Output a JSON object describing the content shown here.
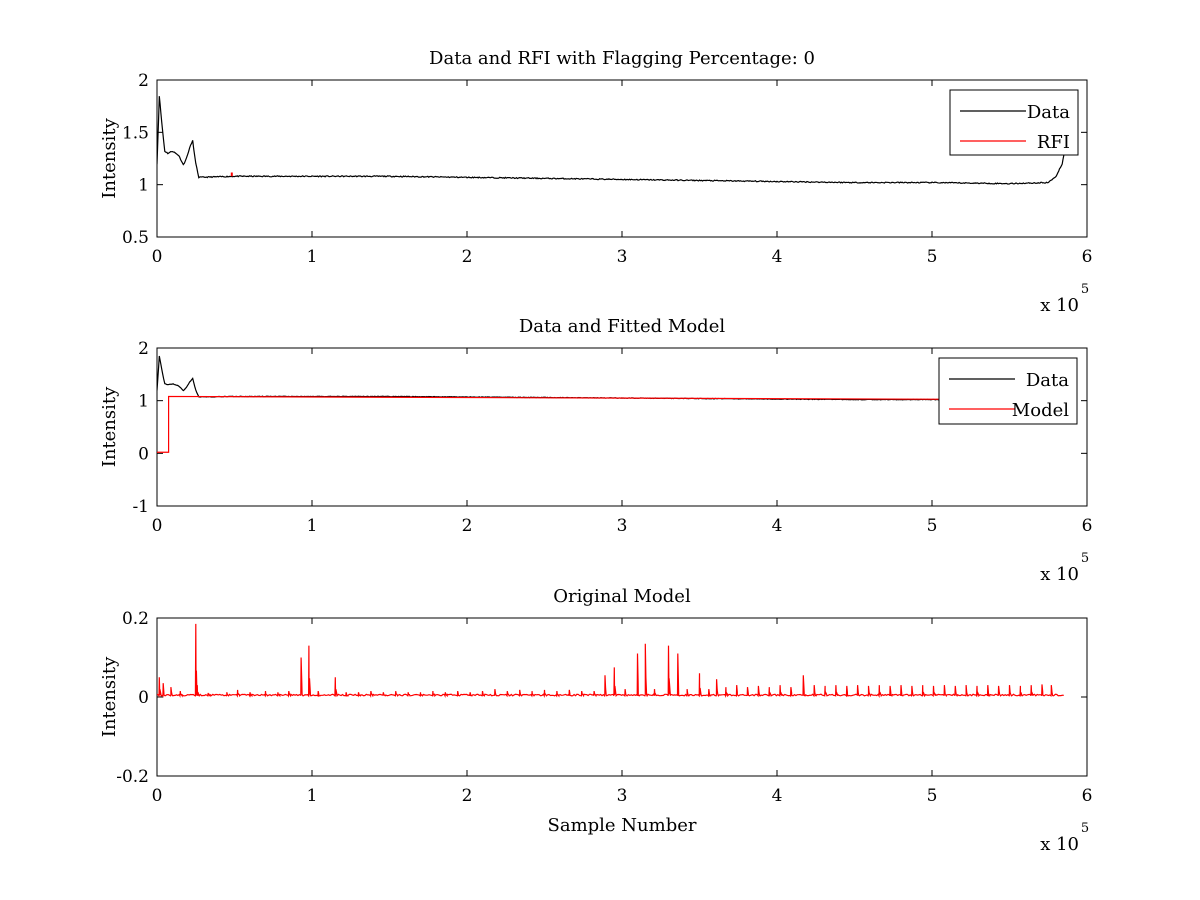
{
  "figure": {
    "background": "#ffffff"
  },
  "chart_data": [
    {
      "type": "line",
      "title": "Data and RFI with Flagging Percentage: 0",
      "xlabel": "",
      "ylabel": "Intensity",
      "xlim": [
        0,
        600000
      ],
      "ylim": [
        0.5,
        2
      ],
      "xticks": [
        0,
        100000,
        200000,
        300000,
        400000,
        500000,
        600000
      ],
      "xtick_labels": [
        "0",
        "1",
        "2",
        "3",
        "4",
        "5",
        "6"
      ],
      "yticks": [
        0.5,
        1,
        1.5,
        2
      ],
      "ytick_labels": [
        "0.5",
        "1",
        "1.5",
        "2"
      ],
      "x_multiplier": {
        "text": "x 10",
        "exponent": "5"
      },
      "grid": false,
      "legend": {
        "position": "top-right"
      },
      "series": [
        {
          "name": "Data",
          "color": "#000000",
          "x": [
            0,
            1500,
            3000,
            5000,
            7000,
            10000,
            14000,
            17000,
            19000,
            21000,
            23000,
            25000,
            27000,
            50000,
            100000,
            150000,
            200000,
            250000,
            300000,
            350000,
            400000,
            450000,
            500000,
            550000,
            575000,
            580000,
            584000,
            585000
          ],
          "y": [
            1.2,
            1.85,
            1.6,
            1.32,
            1.3,
            1.32,
            1.28,
            1.19,
            1.25,
            1.35,
            1.42,
            1.2,
            1.07,
            1.08,
            1.08,
            1.08,
            1.07,
            1.06,
            1.05,
            1.04,
            1.03,
            1.02,
            1.02,
            1.01,
            1.02,
            1.08,
            1.2,
            1.28
          ],
          "noise_amplitude": 0.005
        },
        {
          "name": "RFI",
          "color": "#ff0000",
          "x": [
            48000,
            48000,
            48500,
            48500
          ],
          "y": [
            1.08,
            1.11,
            1.11,
            1.08
          ]
        }
      ]
    },
    {
      "type": "line",
      "title": "Data and Fitted Model",
      "xlabel": "",
      "ylabel": "Intensity",
      "xlim": [
        0,
        600000
      ],
      "ylim": [
        -1,
        2
      ],
      "xticks": [
        0,
        100000,
        200000,
        300000,
        400000,
        500000,
        600000
      ],
      "xtick_labels": [
        "0",
        "1",
        "2",
        "3",
        "4",
        "5",
        "6"
      ],
      "yticks": [
        -1,
        0,
        1,
        2
      ],
      "ytick_labels": [
        "-1",
        "0",
        "1",
        "2"
      ],
      "x_multiplier": {
        "text": "x 10",
        "exponent": "5"
      },
      "grid": false,
      "legend": {
        "position": "top-right"
      },
      "series": [
        {
          "name": "Data",
          "color": "#000000",
          "x": [
            0,
            1500,
            3000,
            5000,
            7000,
            10000,
            14000,
            17000,
            19000,
            21000,
            23000,
            25000,
            27000,
            50000,
            100000,
            150000,
            200000,
            250000,
            300000,
            350000,
            400000,
            450000,
            500000,
            550000,
            575000
          ],
          "y": [
            1.2,
            1.85,
            1.6,
            1.32,
            1.3,
            1.32,
            1.28,
            1.19,
            1.25,
            1.35,
            1.42,
            1.2,
            1.07,
            1.08,
            1.08,
            1.08,
            1.07,
            1.06,
            1.05,
            1.04,
            1.03,
            1.02,
            1.02,
            1.01,
            1.02
          ],
          "noise_amplitude": 0.005
        },
        {
          "name": "Model",
          "color": "#ff0000",
          "x": [
            0,
            7500,
            7500,
            575000
          ],
          "y": [
            0.02,
            0.02,
            1.08,
            1.02
          ]
        }
      ]
    },
    {
      "type": "line",
      "title": "Original Model",
      "xlabel": "Sample Number",
      "ylabel": "Intensity",
      "xlim": [
        0,
        600000
      ],
      "ylim": [
        -0.2,
        0.2
      ],
      "xticks": [
        0,
        100000,
        200000,
        300000,
        400000,
        500000,
        600000
      ],
      "xtick_labels": [
        "0",
        "1",
        "2",
        "3",
        "4",
        "5",
        "6"
      ],
      "yticks": [
        -0.2,
        0,
        0.2
      ],
      "ytick_labels": [
        "-0.2",
        "0",
        "0.2"
      ],
      "x_multiplier": {
        "text": "x 10",
        "exponent": "5"
      },
      "grid": false,
      "legend": null,
      "series": [
        {
          "color": "#ff0000",
          "baseline": 0.003,
          "x_end": 585000,
          "bumps": [
            {
              "x": 1500,
              "y": 0.05
            },
            {
              "x": 4000,
              "y": 0.035
            },
            {
              "x": 9000,
              "y": 0.025
            },
            {
              "x": 15000,
              "y": 0.015
            },
            {
              "x": 25000,
              "y": 0.185
            },
            {
              "x": 26000,
              "y": 0.03
            },
            {
              "x": 33000,
              "y": 0.01
            },
            {
              "x": 45000,
              "y": 0.012
            },
            {
              "x": 52000,
              "y": 0.018
            },
            {
              "x": 60000,
              "y": 0.012
            },
            {
              "x": 70000,
              "y": 0.015
            },
            {
              "x": 78000,
              "y": 0.012
            },
            {
              "x": 85000,
              "y": 0.015
            },
            {
              "x": 93000,
              "y": 0.1
            },
            {
              "x": 98000,
              "y": 0.13
            },
            {
              "x": 104000,
              "y": 0.015
            },
            {
              "x": 115000,
              "y": 0.05
            },
            {
              "x": 122000,
              "y": 0.012
            },
            {
              "x": 130000,
              "y": 0.012
            },
            {
              "x": 138000,
              "y": 0.015
            },
            {
              "x": 146000,
              "y": 0.012
            },
            {
              "x": 154000,
              "y": 0.015
            },
            {
              "x": 162000,
              "y": 0.012
            },
            {
              "x": 170000,
              "y": 0.012
            },
            {
              "x": 178000,
              "y": 0.015
            },
            {
              "x": 186000,
              "y": 0.012
            },
            {
              "x": 194000,
              "y": 0.015
            },
            {
              "x": 202000,
              "y": 0.012
            },
            {
              "x": 210000,
              "y": 0.015
            },
            {
              "x": 218000,
              "y": 0.02
            },
            {
              "x": 226000,
              "y": 0.015
            },
            {
              "x": 234000,
              "y": 0.018
            },
            {
              "x": 242000,
              "y": 0.015
            },
            {
              "x": 250000,
              "y": 0.018
            },
            {
              "x": 258000,
              "y": 0.015
            },
            {
              "x": 266000,
              "y": 0.018
            },
            {
              "x": 274000,
              "y": 0.015
            },
            {
              "x": 282000,
              "y": 0.015
            },
            {
              "x": 289000,
              "y": 0.055
            },
            {
              "x": 295000,
              "y": 0.075
            },
            {
              "x": 302000,
              "y": 0.02
            },
            {
              "x": 310000,
              "y": 0.11
            },
            {
              "x": 315000,
              "y": 0.135
            },
            {
              "x": 321000,
              "y": 0.02
            },
            {
              "x": 330000,
              "y": 0.13
            },
            {
              "x": 336000,
              "y": 0.11
            },
            {
              "x": 342000,
              "y": 0.02
            },
            {
              "x": 350000,
              "y": 0.06
            },
            {
              "x": 356000,
              "y": 0.02
            },
            {
              "x": 361000,
              "y": 0.045
            },
            {
              "x": 367000,
              "y": 0.025
            },
            {
              "x": 374000,
              "y": 0.03
            },
            {
              "x": 381000,
              "y": 0.025
            },
            {
              "x": 388000,
              "y": 0.028
            },
            {
              "x": 395000,
              "y": 0.025
            },
            {
              "x": 402000,
              "y": 0.03
            },
            {
              "x": 409000,
              "y": 0.025
            },
            {
              "x": 417000,
              "y": 0.055
            },
            {
              "x": 424000,
              "y": 0.03
            },
            {
              "x": 431000,
              "y": 0.028
            },
            {
              "x": 438000,
              "y": 0.03
            },
            {
              "x": 445000,
              "y": 0.028
            },
            {
              "x": 452000,
              "y": 0.03
            },
            {
              "x": 459000,
              "y": 0.028
            },
            {
              "x": 466000,
              "y": 0.03
            },
            {
              "x": 473000,
              "y": 0.028
            },
            {
              "x": 480000,
              "y": 0.03
            },
            {
              "x": 487000,
              "y": 0.028
            },
            {
              "x": 494000,
              "y": 0.03
            },
            {
              "x": 501000,
              "y": 0.028
            },
            {
              "x": 508000,
              "y": 0.03
            },
            {
              "x": 515000,
              "y": 0.028
            },
            {
              "x": 522000,
              "y": 0.03
            },
            {
              "x": 529000,
              "y": 0.028
            },
            {
              "x": 536000,
              "y": 0.03
            },
            {
              "x": 543000,
              "y": 0.028
            },
            {
              "x": 550000,
              "y": 0.03
            },
            {
              "x": 557000,
              "y": 0.028
            },
            {
              "x": 564000,
              "y": 0.03
            },
            {
              "x": 571000,
              "y": 0.032
            },
            {
              "x": 577000,
              "y": 0.03
            }
          ]
        }
      ]
    }
  ]
}
